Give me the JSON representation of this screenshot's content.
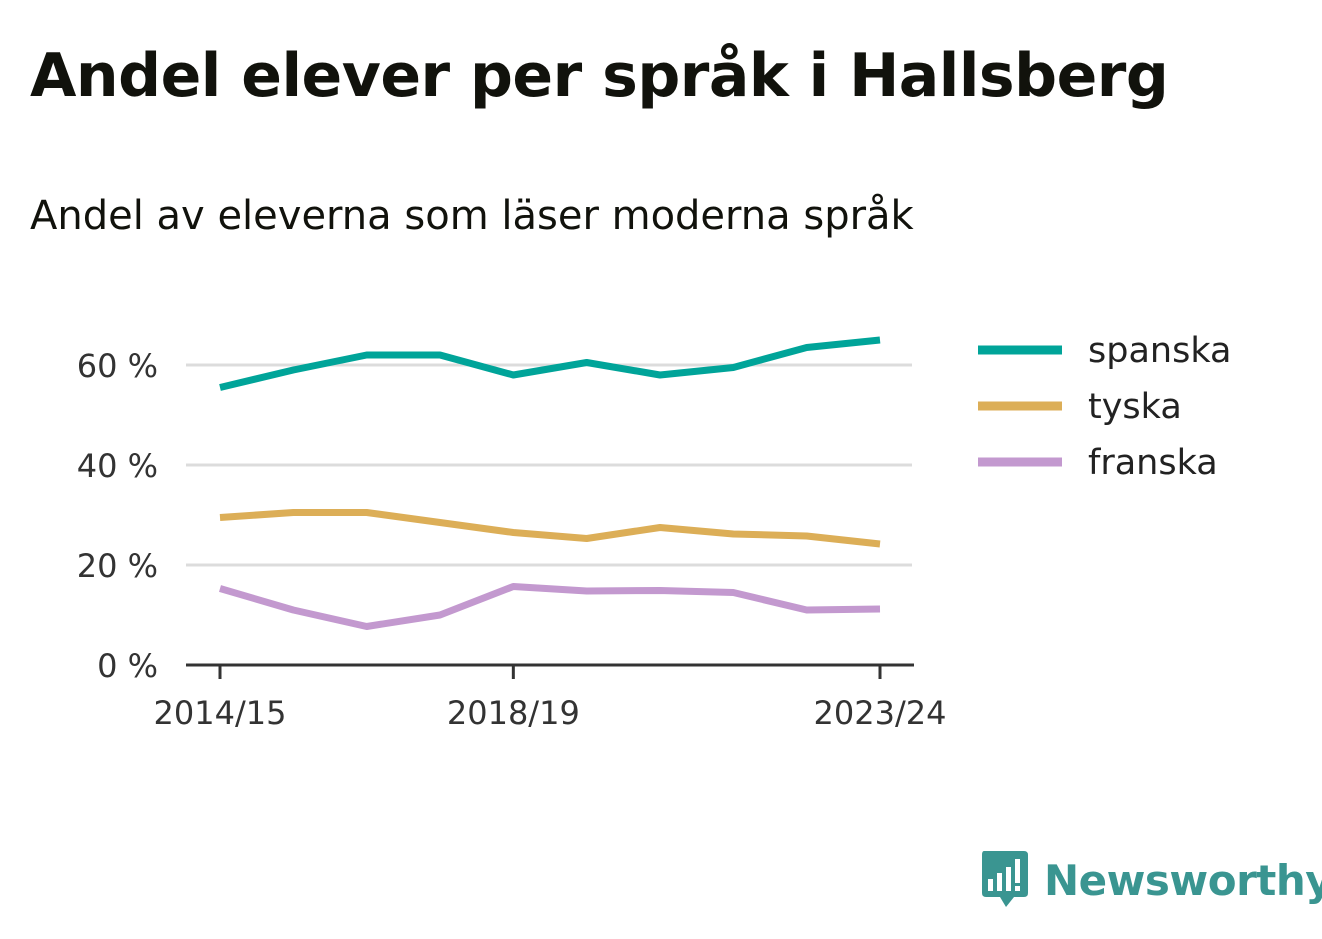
{
  "header": {
    "title": "Andel elever per språk i Hallsberg",
    "subtitle": "Andel av eleverna som läser moderna språk"
  },
  "brand": {
    "name": "Newsworthy",
    "icon": "newsworthy-logo-icon",
    "color": "#3a9591"
  },
  "chart_data": {
    "type": "line",
    "x": [
      "2014/15",
      "2015/16",
      "2016/17",
      "2017/18",
      "2018/19",
      "2019/20",
      "2020/21",
      "2021/22",
      "2022/23",
      "2023/24"
    ],
    "x_tick_labels": [
      "2014/15",
      "2018/19",
      "2023/24"
    ],
    "y_ticks": [
      0,
      20,
      40,
      60
    ],
    "y_tick_labels": [
      "0 %",
      "20 %",
      "40 %",
      "60 %"
    ],
    "ylim": [
      0,
      70
    ],
    "grid": true,
    "legend_position": "right",
    "series": [
      {
        "name": "spanska",
        "color": "#00a499",
        "values": [
          55.5,
          59,
          62,
          62,
          58,
          60.5,
          58,
          59.5,
          63.5,
          65
        ]
      },
      {
        "name": "tyska",
        "color": "#dcae57",
        "values": [
          29.5,
          30.5,
          30.5,
          28.5,
          26.5,
          25.3,
          27.5,
          26.2,
          25.8,
          24.2
        ]
      },
      {
        "name": "franska",
        "color": "#c399cf",
        "values": [
          15.3,
          11,
          7.7,
          10,
          15.7,
          14.8,
          14.9,
          14.5,
          11,
          11.2
        ]
      }
    ]
  }
}
